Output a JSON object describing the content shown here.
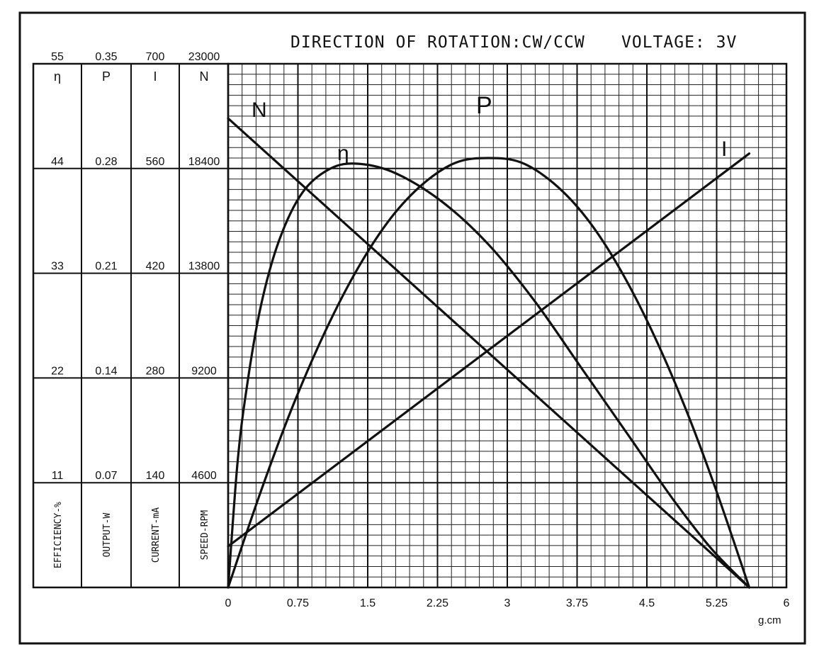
{
  "chart_data": {
    "type": "line",
    "title": "DIRECTION OF ROTATION:CW/CCW",
    "subtitle": "VOLTAGE: 3V",
    "xlabel": "g.cm",
    "xlim": [
      0,
      6
    ],
    "x_ticks": [
      "0",
      "0.75",
      "1.5",
      "2.25",
      "3",
      "3.75",
      "4.5",
      "5.25",
      "6"
    ],
    "grid": true,
    "scales": [
      {
        "key": "eff",
        "symbol": "η",
        "label": "EFFICIENCY-%",
        "ylim": [
          0,
          55
        ],
        "ticks": [
          "11",
          "22",
          "33",
          "44",
          "55"
        ]
      },
      {
        "key": "out",
        "symbol": "P",
        "label": "OUTPUT-W",
        "ylim": [
          0,
          0.35
        ],
        "ticks": [
          "0.07",
          "0.14",
          "0.21",
          "0.28",
          "0.35"
        ]
      },
      {
        "key": "cur",
        "symbol": "I",
        "label": "CURRENT-mA",
        "ylim": [
          0,
          700
        ],
        "ticks": [
          "140",
          "280",
          "420",
          "560",
          "700"
        ]
      },
      {
        "key": "spd",
        "symbol": "N",
        "label": "SPEED-RPM",
        "ylim": [
          0,
          23000
        ],
        "ticks": [
          "4600",
          "9200",
          "13800",
          "18400",
          "23000"
        ]
      }
    ],
    "series": [
      {
        "name": "N",
        "scale": "spd",
        "x": [
          0,
          5.6
        ],
        "y": [
          20600,
          0
        ]
      },
      {
        "name": "I",
        "scale": "cur",
        "x": [
          0,
          5.6
        ],
        "y": [
          55,
          580
        ]
      },
      {
        "name": "P",
        "scale": "out",
        "x": [
          0,
          0.35,
          0.7,
          1.05,
          1.4,
          1.75,
          2.1,
          2.45,
          2.8,
          3.15,
          3.5,
          3.85,
          4.2,
          4.55,
          4.9,
          5.25,
          5.6
        ],
        "y": [
          0,
          0.064,
          0.122,
          0.172,
          0.214,
          0.247,
          0.27,
          0.284,
          0.287,
          0.284,
          0.27,
          0.247,
          0.214,
          0.172,
          0.122,
          0.064,
          0
        ]
      },
      {
        "name": "η",
        "scale": "eff",
        "x": [
          0,
          0.1,
          0.2,
          0.35,
          0.55,
          0.8,
          1.1,
          1.4,
          1.8,
          2.3,
          2.8,
          3.3,
          3.8,
          4.3,
          4.8,
          5.2,
          5.6
        ],
        "y": [
          0,
          13,
          21,
          29.5,
          36.5,
          41.5,
          44,
          44.5,
          43.5,
          40.5,
          36,
          30,
          23,
          16,
          9,
          4,
          0
        ]
      }
    ]
  }
}
